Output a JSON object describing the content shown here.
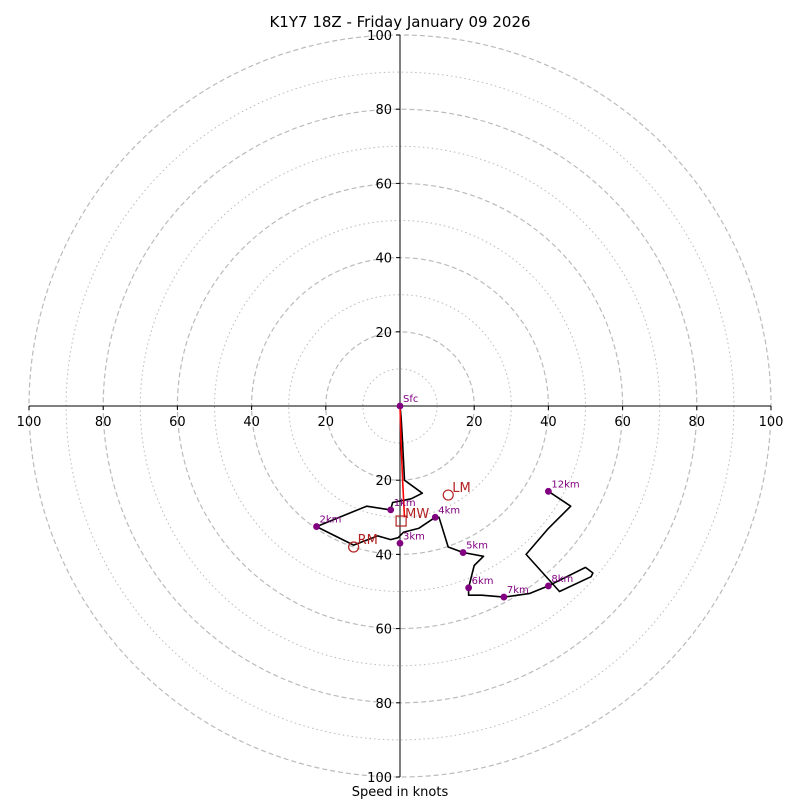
{
  "chart_data": {
    "type": "line",
    "title": "K1Y7 18Z - Friday January 09 2026",
    "xlabel": "Speed in knots",
    "ylabel": "",
    "range": 100,
    "ring_major": [
      20,
      40,
      60,
      80,
      100
    ],
    "ring_minor": [
      10,
      30,
      50,
      70,
      90
    ],
    "tick_labels_h": [
      "100",
      "80",
      "60",
      "40",
      "20",
      "20",
      "40",
      "60",
      "80",
      "100"
    ],
    "tick_values_h": [
      -100,
      -80,
      -60,
      -40,
      -20,
      20,
      40,
      60,
      80,
      100
    ],
    "tick_labels_v": [
      "100",
      "80",
      "60",
      "40",
      "20",
      "20",
      "40",
      "60",
      "80",
      "100"
    ],
    "tick_values_v": [
      100,
      80,
      60,
      40,
      20,
      -20,
      -40,
      -60,
      -80,
      -100
    ],
    "grid": true,
    "colors": {
      "hodograph": "#000000",
      "lowlevel": "#ff0000",
      "height_marker": "#800080",
      "storm_motion": "#b22222",
      "grid": "#bbbbbb",
      "axes": "#000000"
    },
    "series": [
      {
        "x": [
          0,
          0.3,
          0.7,
          1.2,
          6,
          3,
          -2,
          -2.5,
          -9,
          -22.5,
          -12.5,
          -6,
          -2.5,
          -0.5,
          1,
          5,
          9.5,
          10.5,
          13,
          17,
          22.5,
          20,
          19.5,
          18.5,
          18.5,
          22,
          28,
          35,
          40,
          42,
          50,
          52,
          51.5,
          43,
          34,
          40,
          46,
          40
        ],
        "y": [
          0,
          -3,
          -10,
          -20,
          -23.5,
          -25,
          -26,
          -28,
          -27,
          -32.5,
          -37.5,
          -35,
          -36,
          -35.5,
          -34,
          -33,
          -30,
          -30,
          -38,
          -39.5,
          -40.5,
          -43,
          -45,
          -49,
          -51,
          -51,
          -51.5,
          -50.5,
          -48.5,
          -47.5,
          -43.5,
          -45,
          -46,
          -50,
          -40,
          -33,
          -27,
          -23
        ]
      }
    ],
    "lowlevel_x": [
      0,
      0.3,
      0.7,
      1.2
    ],
    "lowlevel_y": [
      0,
      -10,
      -20,
      -30
    ],
    "height_markers": [
      {
        "label": "Sfc",
        "u": 0,
        "v": 0
      },
      {
        "label": "1km",
        "u": -2.5,
        "v": -28
      },
      {
        "label": "2km",
        "u": -22.5,
        "v": -32.5
      },
      {
        "label": "3km",
        "u": 0,
        "v": -37
      },
      {
        "label": "4km",
        "u": 9.5,
        "v": -30
      },
      {
        "label": "5km",
        "u": 17,
        "v": -39.5
      },
      {
        "label": "6km",
        "u": 18.5,
        "v": -49
      },
      {
        "label": "7km",
        "u": 28,
        "v": -51.5
      },
      {
        "label": "8km",
        "u": 40,
        "v": -48.5
      },
      {
        "label": "12km",
        "u": 40,
        "v": -23
      }
    ],
    "storm_motion": [
      {
        "label": "LM",
        "u": 13,
        "v": -24,
        "shape": "circle"
      },
      {
        "label": "RM",
        "u": -12.5,
        "v": -38,
        "shape": "circle"
      },
      {
        "label": "MW",
        "u": 0.3,
        "v": -31,
        "shape": "square"
      }
    ]
  }
}
